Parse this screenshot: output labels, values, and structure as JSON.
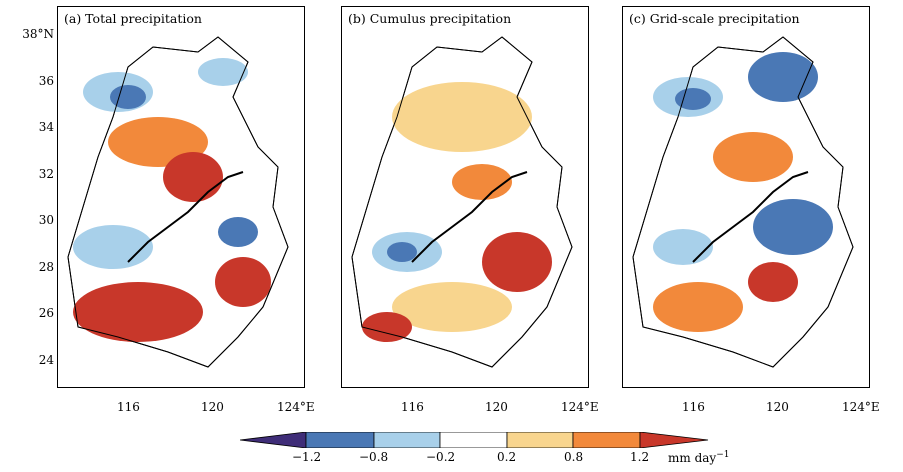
{
  "panels": [
    {
      "id": "a",
      "title": "(a) Total precipitation"
    },
    {
      "id": "b",
      "title": "(b) Cumulus precipitation"
    },
    {
      "id": "c",
      "title": "(c) Grid-scale precipitation"
    }
  ],
  "lat_ticks": [
    "38°N",
    "36",
    "34",
    "32",
    "30",
    "28",
    "26",
    "24"
  ],
  "lon_ticks": [
    "116",
    "120",
    "124°E"
  ],
  "colorbar": {
    "labels": [
      "−1.2",
      "−0.8",
      "−0.2",
      "0.2",
      "0.8",
      "1.2"
    ],
    "units": "mm day",
    "units_exp": "−1",
    "colors": [
      "#3f2d78",
      "#4a78b5",
      "#a8d0ea",
      "#ffffff",
      "#f8d58e",
      "#f2893b",
      "#c8372a"
    ]
  }
}
